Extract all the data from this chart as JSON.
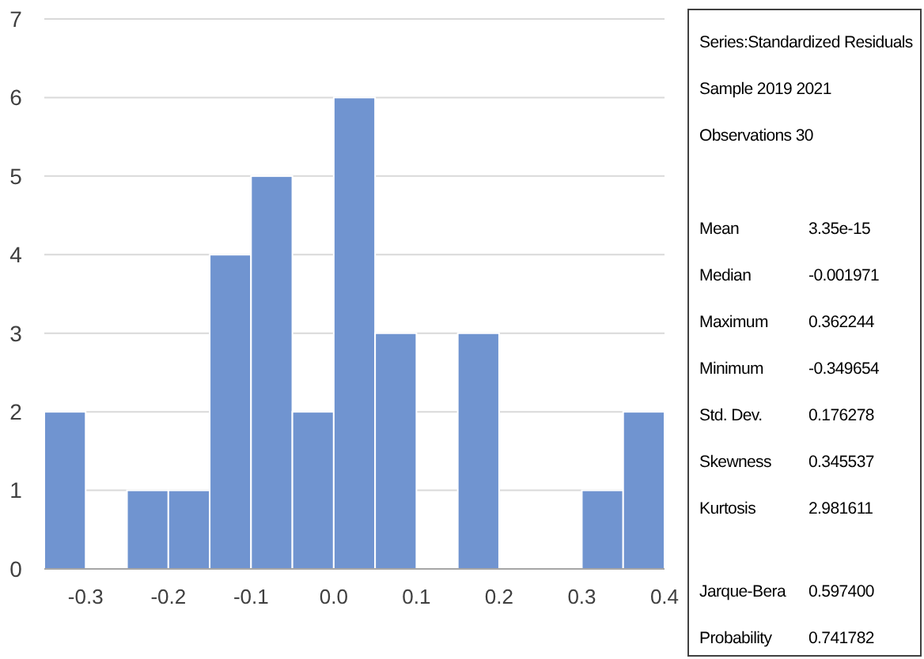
{
  "chart_data": {
    "type": "histogram",
    "color": "#7094d0",
    "bins": [
      -0.35,
      -0.3,
      -0.25,
      -0.2,
      -0.15,
      -0.1,
      -0.05,
      0,
      0.05,
      0.1,
      0.15,
      0.2,
      0.25,
      0.3,
      0.35,
      0.4
    ],
    "values": [
      2,
      0,
      1,
      1,
      4,
      5,
      2,
      6,
      3,
      0,
      3,
      0,
      0,
      1,
      2
    ],
    "xlim": [
      -0.35,
      0.4
    ],
    "xticks": [
      -0.3,
      -0.2,
      -0.1,
      {
        "value": 0,
        "label": "0.0"
      },
      0.1,
      0.2,
      0.3,
      0.4
    ],
    "ylim": [
      0,
      7
    ],
    "yticks": [
      0,
      1,
      2,
      3,
      4,
      5,
      6,
      7
    ],
    "grid": "y",
    "annotations": [
      "Series:Standardized Residuals",
      "Sample 2019 2021",
      "Observations 30",
      "Mean\t3.35e-15",
      "Median\t-0.001971",
      "Maximum\t0.362244",
      "Minimum\t-0.349654",
      "Std. Dev.\t0.176278",
      "Skewness\t0.345537",
      "Kurtosis\t2.981611",
      "Jarque-Bera\t0.597400",
      "Probability\t0.741782"
    ]
  }
}
